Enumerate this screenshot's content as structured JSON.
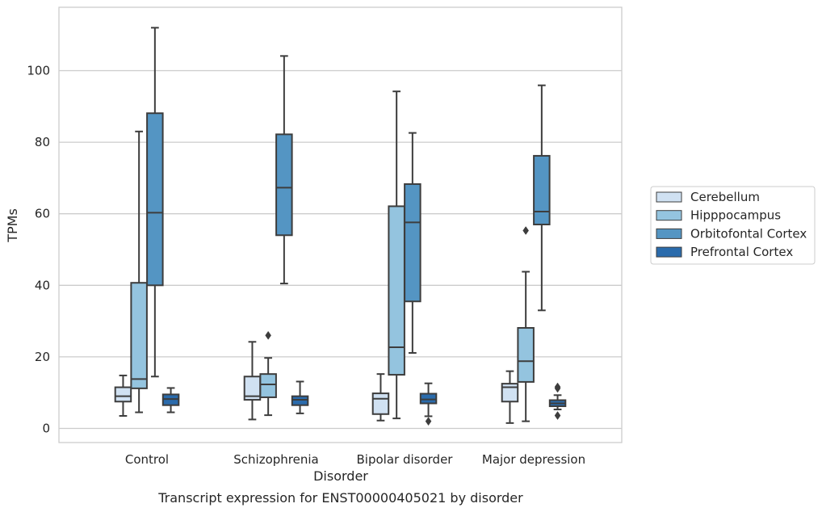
{
  "chart_data": {
    "type": "box",
    "caption": "Transcript expression for ENST00000405021 by disorder",
    "xlabel": "Disorder",
    "ylabel": "TPMs",
    "ylim": [
      -4,
      118
    ],
    "yticks": [
      0,
      20,
      40,
      60,
      80,
      100
    ],
    "grid": true,
    "legend_position": "right",
    "categories": [
      "Control",
      "Schizophrenia",
      "Bipolar disorder",
      "Major depression"
    ],
    "series": [
      {
        "name": "Cerebellum",
        "color": "#d0e1f2",
        "boxes": [
          {
            "whislo": 3.5,
            "q1": 7.5,
            "med": 9.0,
            "q3": 11.5,
            "whishi": 14.8,
            "fliers": []
          },
          {
            "whislo": 2.5,
            "q1": 8.0,
            "med": 9.0,
            "q3": 14.5,
            "whishi": 24.2,
            "fliers": []
          },
          {
            "whislo": 2.2,
            "q1": 4.0,
            "med": 8.3,
            "q3": 9.8,
            "whishi": 15.2,
            "fliers": []
          },
          {
            "whislo": 1.5,
            "q1": 7.5,
            "med": 11.5,
            "q3": 12.5,
            "whishi": 16.0,
            "fliers": []
          }
        ]
      },
      {
        "name": "Hipppocampus",
        "color": "#94c4df",
        "boxes": [
          {
            "whislo": 4.5,
            "q1": 11.2,
            "med": 13.8,
            "q3": 40.7,
            "whishi": 83.0,
            "fliers": []
          },
          {
            "whislo": 3.7,
            "q1": 8.7,
            "med": 12.3,
            "q3": 15.2,
            "whishi": 19.7,
            "fliers": [
              26.0
            ]
          },
          {
            "whislo": 2.8,
            "q1": 15.0,
            "med": 22.7,
            "q3": 62.1,
            "whishi": 94.2,
            "fliers": []
          },
          {
            "whislo": 2.0,
            "q1": 13.0,
            "med": 18.8,
            "q3": 28.1,
            "whishi": 43.8,
            "fliers": [
              55.3
            ]
          }
        ]
      },
      {
        "name": "Orbitofontal Cortex",
        "color": "#5495c3",
        "boxes": [
          {
            "whislo": 14.5,
            "q1": 40.0,
            "med": 60.3,
            "q3": 88.1,
            "whishi": 112.0,
            "fliers": []
          },
          {
            "whislo": 40.5,
            "q1": 54.0,
            "med": 67.3,
            "q3": 82.2,
            "whishi": 104.1,
            "fliers": []
          },
          {
            "whislo": 21.1,
            "q1": 35.5,
            "med": 57.6,
            "q3": 68.3,
            "whishi": 82.6,
            "fliers": []
          },
          {
            "whislo": 33.0,
            "q1": 57.0,
            "med": 60.6,
            "q3": 76.2,
            "whishi": 95.9,
            "fliers": []
          }
        ]
      },
      {
        "name": "Prefrontal Cortex",
        "color": "#2a6bac",
        "boxes": [
          {
            "whislo": 4.5,
            "q1": 6.5,
            "med": 8.2,
            "q3": 9.5,
            "whishi": 11.3,
            "fliers": []
          },
          {
            "whislo": 4.2,
            "q1": 6.5,
            "med": 8.0,
            "q3": 9.0,
            "whishi": 13.1,
            "fliers": []
          },
          {
            "whislo": 3.4,
            "q1": 7.0,
            "med": 8.1,
            "q3": 9.7,
            "whishi": 12.6,
            "fliers": [
              2.0
            ]
          },
          {
            "whislo": 5.3,
            "q1": 6.2,
            "med": 7.0,
            "q3": 7.9,
            "whishi": 9.3,
            "fliers": [
              3.6,
              11.2,
              11.6
            ]
          }
        ]
      }
    ]
  }
}
